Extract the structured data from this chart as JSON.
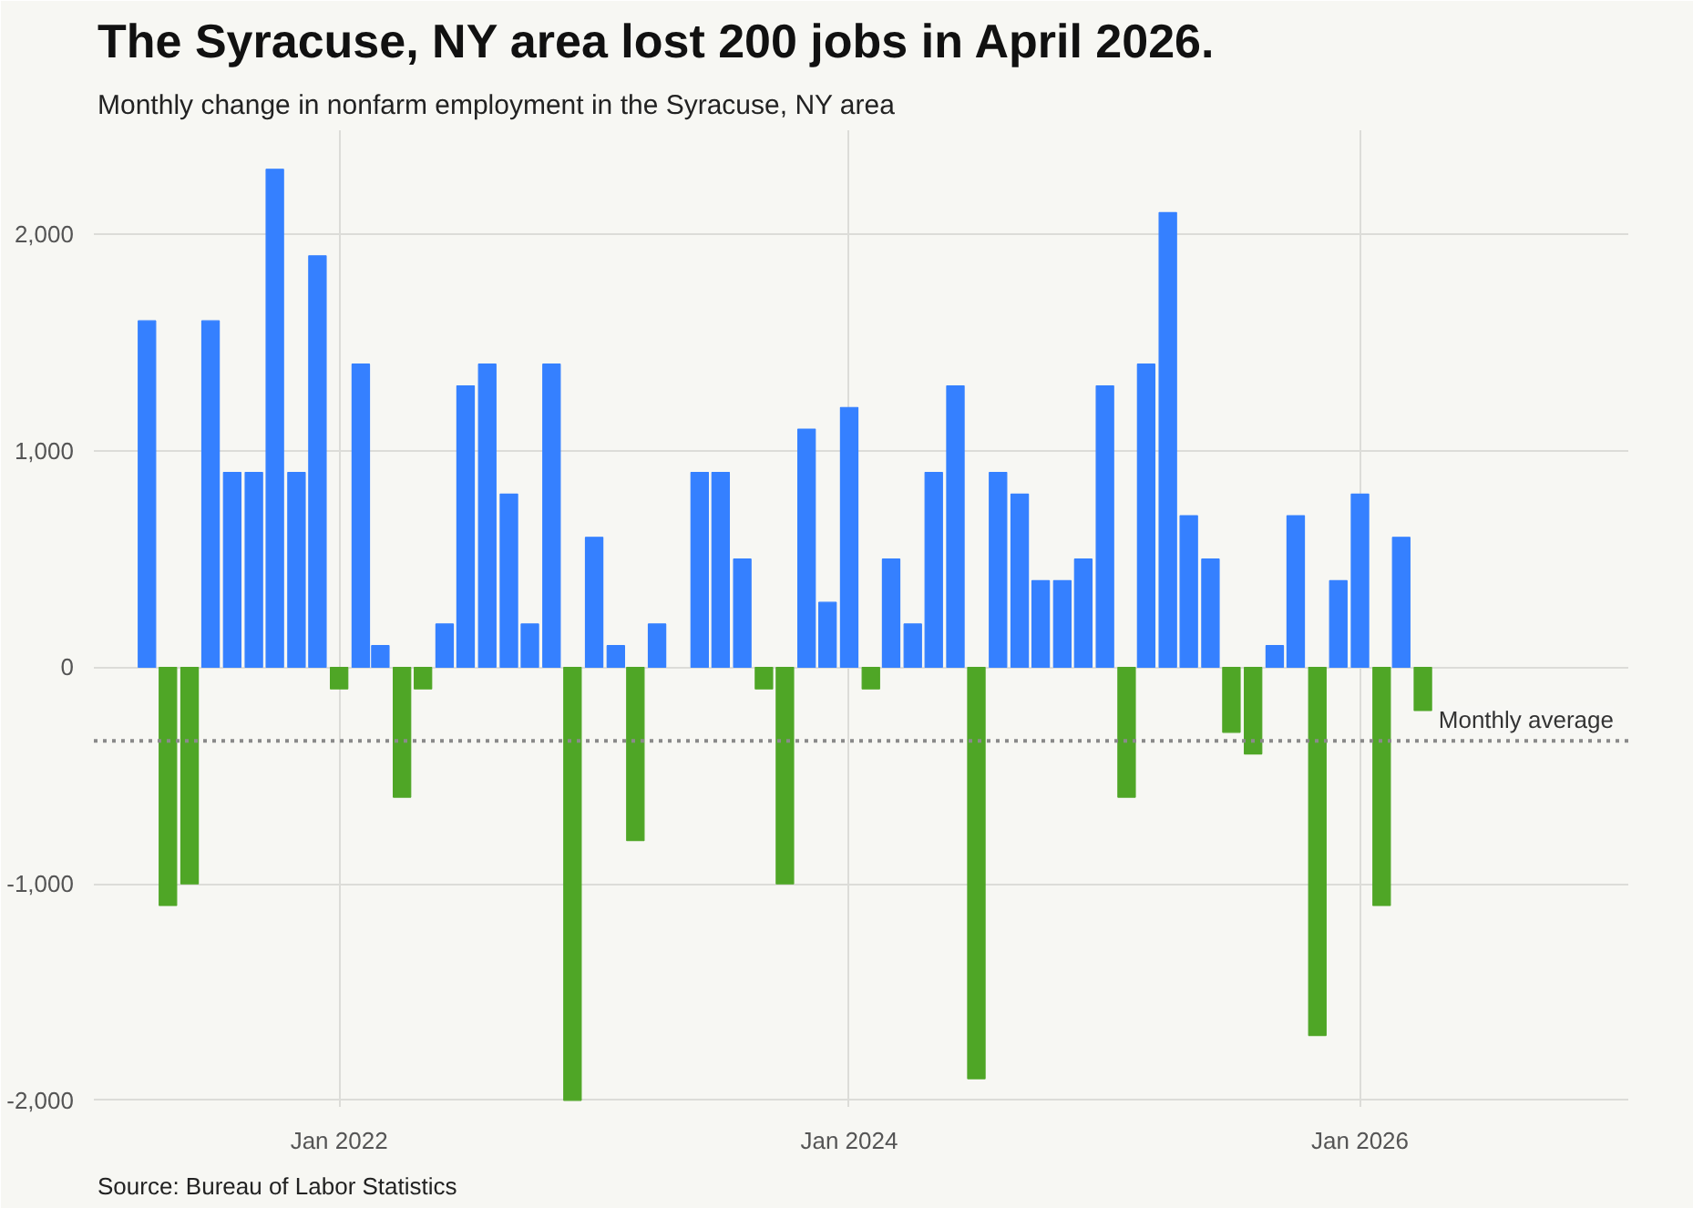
{
  "chart_data": {
    "type": "bar",
    "title": "The Syracuse, NY area lost 200 jobs in April 2026.",
    "subtitle": "Monthly change in nonfarm employment in the Syracuse, NY area",
    "x": [
      "2021-04",
      "2021-05",
      "2021-06",
      "2021-07",
      "2021-08",
      "2021-09",
      "2021-10",
      "2021-11",
      "2021-12",
      "2022-01",
      "2022-02",
      "2022-03",
      "2022-04",
      "2022-05",
      "2022-06",
      "2022-07",
      "2022-08",
      "2022-09",
      "2022-10",
      "2022-11",
      "2022-12",
      "2023-01",
      "2023-02",
      "2023-03",
      "2023-04",
      "2023-05",
      "2023-06",
      "2023-07",
      "2023-08",
      "2023-09",
      "2023-10",
      "2023-11",
      "2023-12",
      "2024-01",
      "2024-02",
      "2024-03",
      "2024-04",
      "2024-05",
      "2024-06",
      "2024-07",
      "2024-08",
      "2024-09",
      "2024-10",
      "2024-11",
      "2024-12",
      "2025-01",
      "2025-02",
      "2025-03",
      "2025-04",
      "2025-05",
      "2025-06",
      "2025-07",
      "2025-08",
      "2025-09",
      "2025-10",
      "2025-11",
      "2025-12",
      "2026-01",
      "2026-02",
      "2026-03",
      "2026-04"
    ],
    "values": [
      1600,
      -1100,
      -1000,
      1600,
      900,
      900,
      2300,
      900,
      1900,
      -100,
      1400,
      100,
      -600,
      -100,
      200,
      1300,
      1400,
      800,
      200,
      1400,
      -2000,
      600,
      100,
      -800,
      200,
      null,
      900,
      900,
      500,
      -100,
      -1000,
      1100,
      300,
      1200,
      -100,
      500,
      200,
      900,
      1300,
      -1900,
      900,
      800,
      400,
      400,
      500,
      1300,
      -600,
      1400,
      2100,
      700,
      500,
      -300,
      -400,
      100,
      700,
      -1700,
      400,
      800,
      -1100,
      600,
      -200
    ],
    "colors": [
      "#3580ff",
      "#4fa626",
      "#4fa626",
      "#3580ff",
      "#3580ff",
      "#3580ff",
      "#3580ff",
      "#3580ff",
      "#3580ff",
      "#4fa626",
      "#3580ff",
      "#3580ff",
      "#4fa626",
      "#4fa626",
      "#3580ff",
      "#3580ff",
      "#3580ff",
      "#3580ff",
      "#3580ff",
      "#3580ff",
      "#4fa626",
      "#3580ff",
      "#3580ff",
      "#4fa626",
      "#3580ff",
      "#3580ff",
      "#3580ff",
      "#3580ff",
      "#3580ff",
      "#4fa626",
      "#4fa626",
      "#3580ff",
      "#3580ff",
      "#3580ff",
      "#4fa626",
      "#3580ff",
      "#3580ff",
      "#3580ff",
      "#3580ff",
      "#4fa626",
      "#3580ff",
      "#3580ff",
      "#3580ff",
      "#3580ff",
      "#3580ff",
      "#3580ff",
      "#4fa626",
      "#3580ff",
      "#3580ff",
      "#3580ff",
      "#3580ff",
      "#4fa626",
      "#4fa626",
      "#3580ff",
      "#3580ff",
      "#4fa626",
      "#3580ff",
      "#3580ff",
      "#4fa626",
      "#3580ff",
      "#4fa626"
    ],
    "xlim": [
      "2021-01-15",
      "2027-01-20"
    ],
    "xticks": [
      {
        "value": "2022-01",
        "label": "Jan 2022"
      },
      {
        "value": "2024-01",
        "label": "Jan 2024"
      },
      {
        "value": "2026-01",
        "label": "Jan 2026"
      }
    ],
    "ylim": [
      -2030,
      2480
    ],
    "yticks": [
      {
        "value": -2000,
        "label": "-2,000"
      },
      {
        "value": -1000,
        "label": "-1,000"
      },
      0,
      {
        "value": 1000,
        "label": "1,000"
      },
      {
        "value": 2000,
        "label": "2,000"
      }
    ],
    "grid": true,
    "ref_lines": [
      {
        "axis": "y",
        "value": -340,
        "label": "Monthly average",
        "color": "#8a8a8a",
        "line_style": "dotted"
      }
    ],
    "annotations": [
      "Source: Bureau of Labor Statistics"
    ]
  }
}
